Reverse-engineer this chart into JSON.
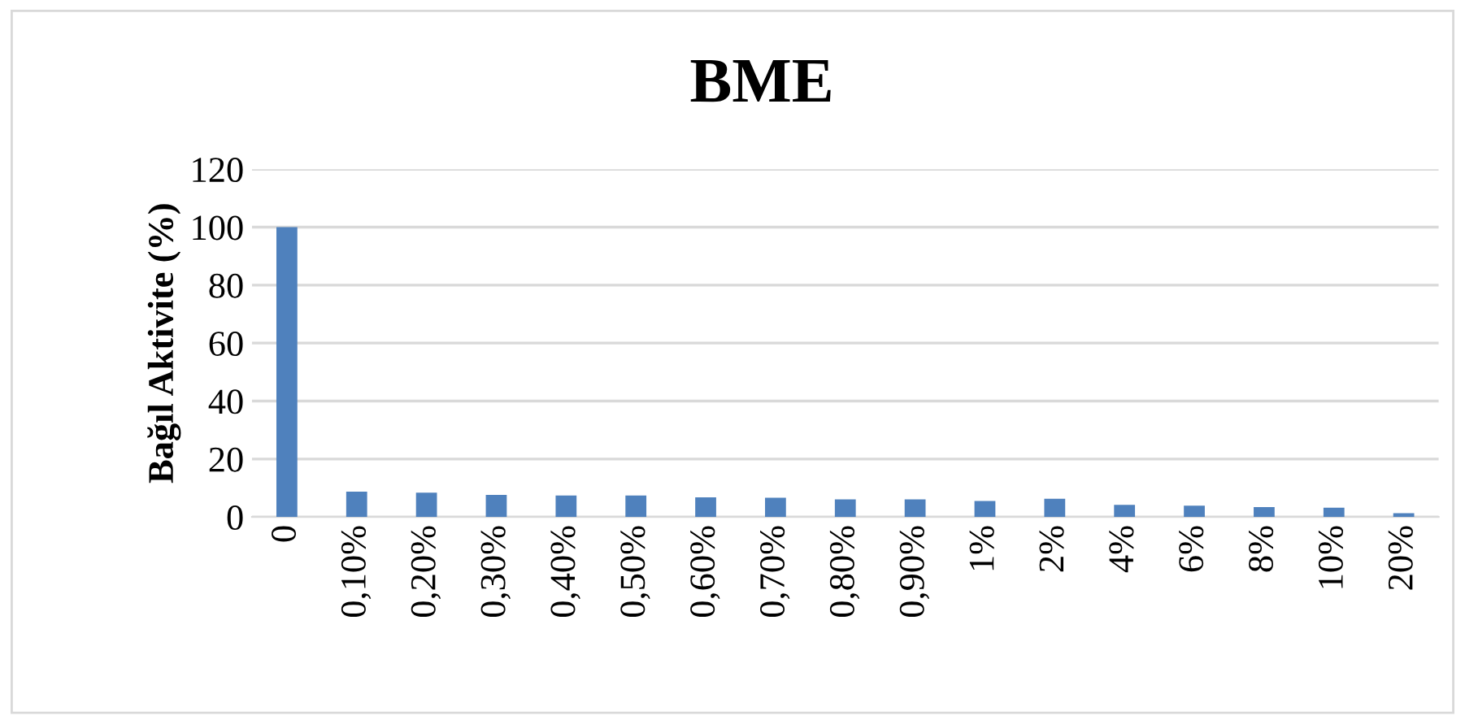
{
  "chart_data": {
    "type": "bar",
    "title": "BME",
    "ylabel": "Bağıl Aktivite (%)",
    "categories": [
      "0",
      "0,10%",
      "0,20%",
      "0,30%",
      "0,40%",
      "0,50%",
      "0,60%",
      "0,70%",
      "0,80%",
      "0,90%",
      "1%",
      "2%",
      "4%",
      "6%",
      "8%",
      "10%",
      "20%"
    ],
    "values": [
      100,
      8.7,
      8.4,
      7.6,
      7.4,
      7.4,
      6.8,
      6.6,
      6.1,
      6.1,
      5.5,
      6.3,
      4.2,
      3.9,
      3.4,
      3.2,
      1.3
    ],
    "color": "#4f81bd",
    "ylim": [
      0,
      120
    ],
    "yticks": [
      0,
      20,
      40,
      60,
      80,
      100,
      120
    ],
    "grid": "y"
  }
}
